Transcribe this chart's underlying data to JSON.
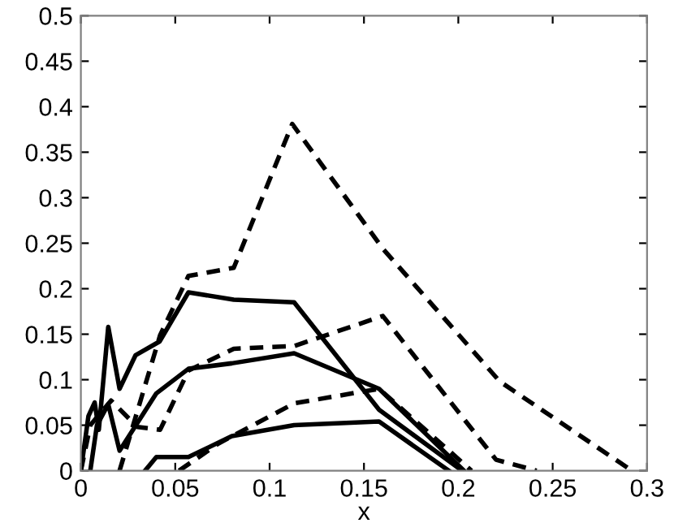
{
  "chart_data": {
    "type": "line",
    "xlabel": "x",
    "xlim": [
      0,
      0.3
    ],
    "ylim": [
      0,
      0.5
    ],
    "xticks": [
      0,
      0.05,
      0.1,
      0.15,
      0.2,
      0.25,
      0.3
    ],
    "yticks": [
      0,
      0.05,
      0.1,
      0.15,
      0.2,
      0.25,
      0.3,
      0.35,
      0.4,
      0.45,
      0.5
    ],
    "grid": false,
    "legend": false,
    "marker": "none",
    "series": [
      {
        "color": "#000000",
        "line_style": "solid",
        "x": [
          0,
          0.004,
          0.0073,
          0.0095,
          0.0145,
          0.0205,
          0.029,
          0.0417,
          0.057,
          0.081,
          0.113,
          0.158,
          0.202
        ],
        "values": [
          0,
          0.06,
          0.075,
          0.045,
          0.158,
          0.09,
          0.127,
          0.142,
          0.196,
          0.188,
          0.185,
          0.067,
          0
        ]
      },
      {
        "color": "#000000",
        "line_style": "solid",
        "x": [
          0.005,
          0.0085,
          0.0145,
          0.0205,
          0.04,
          0.057,
          0.08,
          0.113,
          0.158,
          0.203
        ],
        "values": [
          0,
          0.05,
          0.073,
          0.022,
          0.085,
          0.112,
          0.118,
          0.129,
          0.09,
          0
        ]
      },
      {
        "color": "#000000",
        "line_style": "solid",
        "x": [
          0.034,
          0.04,
          0.057,
          0.08,
          0.113,
          0.158,
          0.195
        ],
        "values": [
          0,
          0.015,
          0.015,
          0.038,
          0.05,
          0.054,
          0
        ]
      },
      {
        "color": "#000000",
        "line_style": "dashed",
        "x": [
          0.0205,
          0.042,
          0.057,
          0.081,
          0.112,
          0.16,
          0.222,
          0.292
        ],
        "values": [
          0,
          0.149,
          0.214,
          0.223,
          0.381,
          0.244,
          0.098,
          0
        ]
      },
      {
        "color": "#000000",
        "line_style": "dashed",
        "x": [
          0,
          0.005,
          0.016,
          0.03,
          0.042,
          0.057,
          0.081,
          0.113,
          0.16,
          0.22,
          0.2415
        ],
        "values": [
          0,
          0.05,
          0.077,
          0.048,
          0.045,
          0.11,
          0.134,
          0.137,
          0.17,
          0.012,
          0
        ]
      },
      {
        "color": "#000000",
        "line_style": "dashed",
        "x": [
          0.052,
          0.073,
          0.113,
          0.158,
          0.207
        ],
        "values": [
          0,
          0.03,
          0.074,
          0.09,
          0
        ]
      }
    ]
  }
}
